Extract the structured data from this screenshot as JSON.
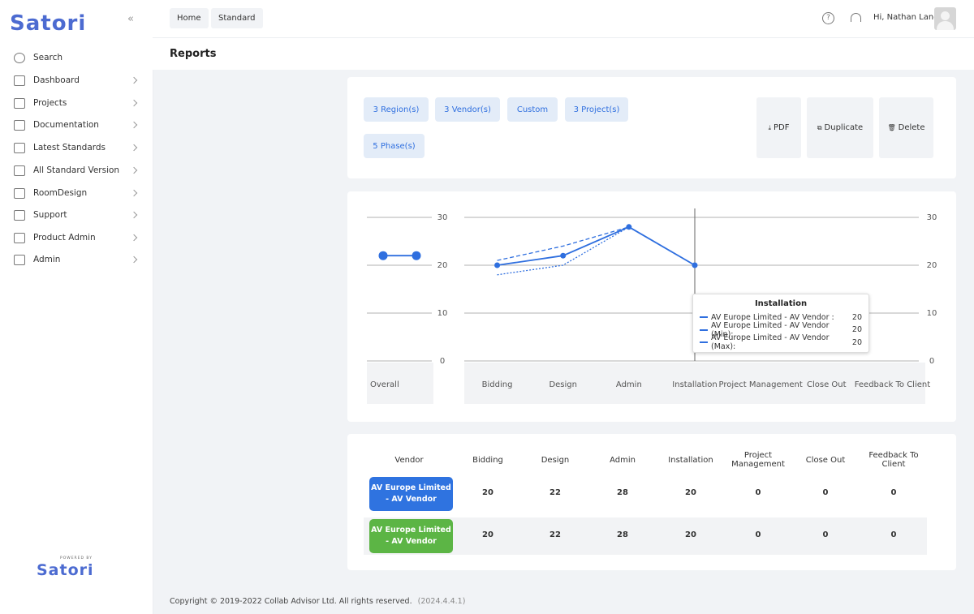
{
  "sidebar": {
    "brand": "Satori",
    "menu": [
      "Search",
      "Dashboard",
      "Projects",
      "Documentation",
      "Latest Standards",
      "All Standard Version",
      "RoomDesign",
      "Support",
      "Product Admin",
      "Admin"
    ],
    "powered_by": "POWERED BY",
    "footer_brand": "Satori"
  },
  "topbar": {
    "breadcrumbs": [
      "Home",
      "Standard"
    ],
    "greeting": "Hi, Nathan Lane"
  },
  "page_title": "Reports",
  "filters": [
    "3 Region(s)",
    "3 Vendor(s)",
    "Custom",
    "3 Project(s)",
    "5 Phase(s)"
  ],
  "actions": [
    "PDF",
    "Duplicate",
    "Delete"
  ],
  "chart_data": {
    "type": "line",
    "categories": [
      "Bidding",
      "Design",
      "Admin",
      "Installation",
      "Project Management",
      "Close Out",
      "Feedback To Client"
    ],
    "series": [
      {
        "name": "AV Europe Limited - AV Vendor",
        "color": "#2f6fdf",
        "dash": "solid",
        "marker": true,
        "values": [
          20,
          22,
          28,
          20,
          null,
          null,
          null
        ]
      },
      {
        "name": "AV Europe Limited - AV Vendor (Min)",
        "color": "#2f6fdf",
        "dash": "dotted",
        "marker": false,
        "values": [
          18,
          20,
          28,
          20,
          null,
          null,
          null
        ]
      },
      {
        "name": "AV Europe Limited - AV Vendor (Max)",
        "color": "#2f6fdf",
        "dash": "dashed",
        "marker": false,
        "values": [
          21,
          24,
          28,
          20,
          null,
          null,
          null
        ]
      }
    ],
    "overall": {
      "label": "Overall",
      "color": "#2f6fdf",
      "values": [
        22,
        22
      ]
    },
    "ylim": [
      0,
      30
    ],
    "yticks": [
      0,
      10,
      20,
      30
    ],
    "grid": true,
    "tooltip": {
      "title": "Installation",
      "items": [
        {
          "label": "AV Europe Limited - AV Vendor :",
          "value": 20
        },
        {
          "label": "AV Europe Limited - AV Vendor (Min):",
          "value": 20
        },
        {
          "label": "AV Europe Limited - AV Vendor (Max):",
          "value": 20
        }
      ]
    }
  },
  "table": {
    "headers": [
      "Vendor",
      "Bidding",
      "Design",
      "Admin",
      "Installation",
      "Project Management",
      "Close Out",
      "Feedback To Client"
    ],
    "rows": [
      {
        "vendor": "AV Europe Limited - AV Vendor",
        "color": "#2f73e0",
        "values": [
          20,
          22,
          28,
          20,
          0,
          0,
          0
        ]
      },
      {
        "vendor": "AV Europe Limited - AV Vendor",
        "color": "#5cb545",
        "values": [
          20,
          22,
          28,
          20,
          0,
          0,
          0
        ]
      }
    ]
  },
  "footer": {
    "copyright": "Copyright © 2019-2022 Collab Advisor Ltd. All rights reserved.",
    "version": "(2024.4.4.1)"
  }
}
